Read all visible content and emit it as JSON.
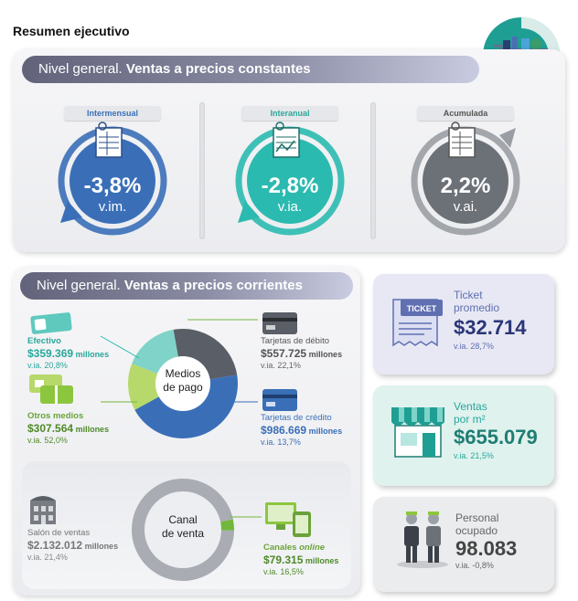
{
  "page_title": "Resumen ejecutivo",
  "colors": {
    "blue": "#3a6fb8",
    "teal": "#2bbab0",
    "gray": "#6c7077",
    "green": "#72b73b",
    "dark_green": "#3f7a3c",
    "teal_text": "#2aa79b"
  },
  "constant": {
    "title_light": "Nivel general. ",
    "title_bold": "Ventas a precios constantes",
    "gauges": [
      {
        "label": "Intermensual",
        "value": "-3,8%",
        "unit": "v.im.",
        "color": "#3a6fb8"
      },
      {
        "label": "Interanual",
        "value": "-2,8%",
        "unit": "v.ia.",
        "color": "#2bbab0"
      },
      {
        "label": "Acumulada",
        "value": "2,2%",
        "unit": "v.ai.",
        "color": "#6c7077"
      }
    ]
  },
  "current": {
    "title_light": "Nivel general. ",
    "title_bold": "Ventas a precios corrientes",
    "payment_center": [
      "Medios",
      "de pago"
    ],
    "channel_center": [
      "Canal",
      "de venta"
    ],
    "efectivo": {
      "label": "Efectivo",
      "value": "$359.369",
      "suffix": " millones",
      "via": "v.ia. 20,8%"
    },
    "otros": {
      "label": "Otros medios",
      "value": "$307.564",
      "suffix": " millones",
      "via": "v.ia. 52,0%"
    },
    "debito": {
      "label": "Tarjetas de débito",
      "value": "$557.725",
      "suffix": " millones",
      "via": "v.ia. 22,1%"
    },
    "credito": {
      "label": "Tarjetas de crédito",
      "value": "$986.669",
      "suffix": " millones",
      "via": "v.ia. 13,7%"
    },
    "salon": {
      "label": "Salón de ventas",
      "value": "$2.132.012",
      "suffix": " millones",
      "via": "v.ia. 21,4%"
    },
    "online": {
      "label_a": "Canales ",
      "label_b": "online",
      "value": "$79.315",
      "suffix": " millones",
      "via": "v.ia. 16,5%"
    }
  },
  "chart_data": [
    {
      "type": "pie",
      "title": "Medios de pago",
      "categories": [
        "Efectivo",
        "Otros medios",
        "Tarjetas de débito",
        "Tarjetas de crédito"
      ],
      "values": [
        359369,
        307564,
        557725,
        986669
      ],
      "unit": "millones de $"
    },
    {
      "type": "pie",
      "title": "Canal de venta",
      "categories": [
        "Salón de ventas",
        "Canales online"
      ],
      "values": [
        2132012,
        79315
      ],
      "unit": "millones de $"
    }
  ],
  "cards": {
    "ticket": {
      "label_a": "Ticket",
      "label_b": "promedio",
      "value": "$32.714",
      "via": "v.ia. 28,7%",
      "icon_text": "TICKET"
    },
    "ventas_m2": {
      "label_a": "Ventas",
      "label_b": "por m²",
      "value": "$655.079",
      "via": "v.ia. 21,5%"
    },
    "personal": {
      "label_a": "Personal",
      "label_b": "ocupado",
      "value": "98.083",
      "via": "v.ia. -0,8%"
    }
  }
}
